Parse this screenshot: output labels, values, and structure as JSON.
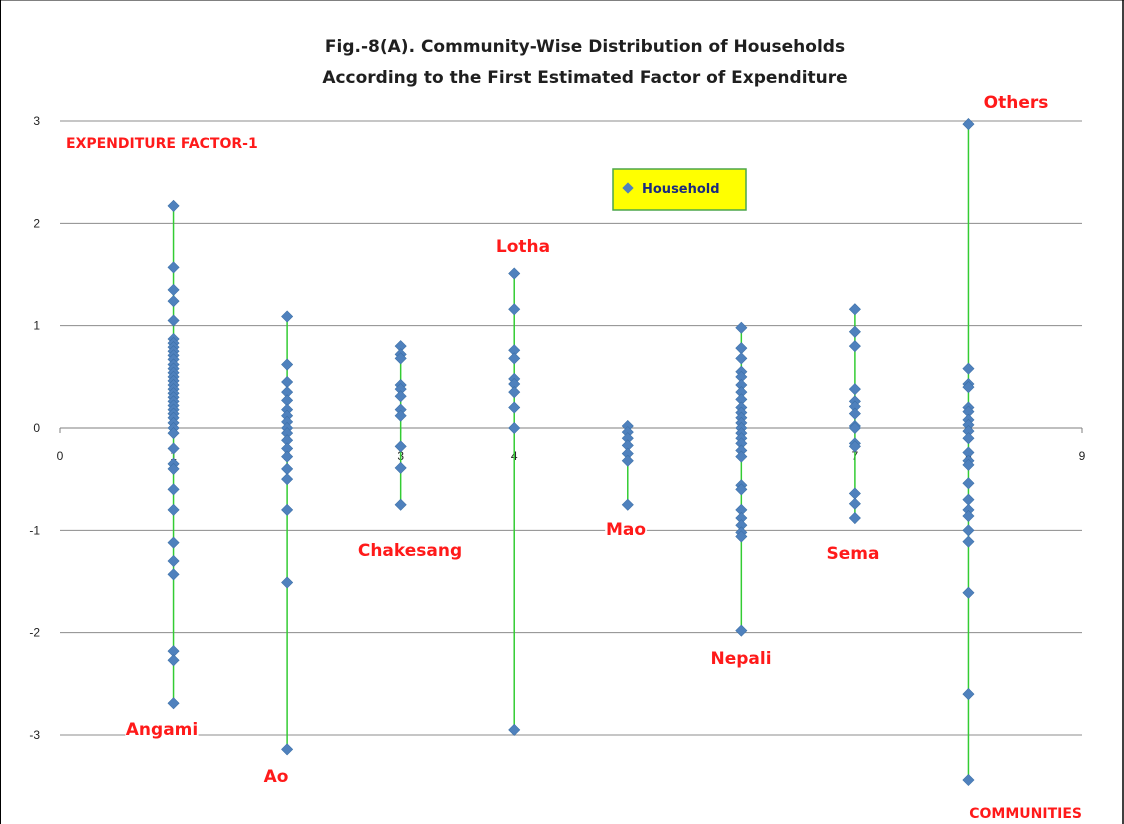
{
  "chart_data": {
    "type": "scatter",
    "title_lines": [
      "Fig.-8(A). Community-Wise Distribution of Households",
      "According to the First Estimated Factor of Expenditure"
    ],
    "ylabel": "EXPENDITURE FACTOR-1",
    "xlabel": "COMMUNITIES",
    "xlim": [
      0,
      9
    ],
    "ylim": [
      -3.5,
      3
    ],
    "y_gridlines": [
      3,
      2,
      1,
      0,
      -1,
      -2,
      -3
    ],
    "x_ticks": [
      "0",
      "1",
      "2",
      "3",
      "4",
      "5",
      "6",
      "7",
      "8",
      "9"
    ],
    "y_ticks": [
      "3",
      "2",
      "1",
      "0",
      "-1",
      "-2",
      "-3"
    ],
    "legend": {
      "label": "Household",
      "placement": "upper-center",
      "background": "#ffff00",
      "border": "#4ca64c"
    },
    "colors": {
      "marker": "#4f81bd",
      "range_line": "#33cc33",
      "community_label": "#ff1a1a",
      "grid": "#8c8c8c"
    },
    "series": [
      {
        "name": "Household",
        "x": 1,
        "label": "Angami",
        "y": [
          2.17,
          1.57,
          1.35,
          1.24,
          1.05,
          0.87,
          0.83,
          0.79,
          0.75,
          0.71,
          0.67,
          0.62,
          0.58,
          0.54,
          0.5,
          0.46,
          0.42,
          0.38,
          0.34,
          0.3,
          0.26,
          0.22,
          0.18,
          0.14,
          0.1,
          0.05,
          0.0,
          -0.05,
          -0.2,
          -0.35,
          -0.4,
          -0.6,
          -0.8,
          -1.12,
          -1.3,
          -1.43,
          -2.18,
          -2.27,
          -2.69
        ]
      },
      {
        "name": "Household",
        "x": 2,
        "label": "Ao",
        "y": [
          1.09,
          0.62,
          0.45,
          0.35,
          0.27,
          0.18,
          0.12,
          0.06,
          0.0,
          -0.05,
          -0.12,
          -0.2,
          -0.28,
          -0.4,
          -0.5,
          -0.8,
          -1.51,
          -3.14
        ]
      },
      {
        "name": "Household",
        "x": 3,
        "label": "Chakesang",
        "y": [
          0.8,
          0.72,
          0.68,
          0.42,
          0.38,
          0.31,
          0.18,
          0.12,
          -0.18,
          -0.39,
          -0.75
        ]
      },
      {
        "name": "Household",
        "x": 4,
        "label": "Lotha",
        "y": [
          1.51,
          1.16,
          0.76,
          0.68,
          0.48,
          0.43,
          0.35,
          0.2,
          0.0,
          -2.95
        ]
      },
      {
        "name": "Household",
        "x": 5,
        "label": "Mao",
        "y": [
          0.02,
          -0.04,
          -0.1,
          -0.17,
          -0.25,
          -0.32,
          -0.75
        ]
      },
      {
        "name": "Household",
        "x": 6,
        "label": "Nepali",
        "y": [
          0.98,
          0.78,
          0.68,
          0.55,
          0.5,
          0.42,
          0.35,
          0.28,
          0.2,
          0.15,
          0.1,
          0.05,
          0.0,
          -0.05,
          -0.1,
          -0.15,
          -0.22,
          -0.28,
          -0.56,
          -0.6,
          -0.8,
          -0.88,
          -0.95,
          -1.02,
          -1.06,
          -1.98
        ]
      },
      {
        "name": "Household",
        "x": 7,
        "label": "Sema",
        "y": [
          1.16,
          0.94,
          0.8,
          0.38,
          0.26,
          0.21,
          0.14,
          0.02,
          0.0,
          -0.15,
          -0.18,
          -0.64,
          -0.74,
          -0.88
        ]
      },
      {
        "name": "Household",
        "x": 8,
        "label": "Others",
        "y": [
          2.97,
          0.58,
          0.43,
          0.4,
          0.2,
          0.16,
          0.08,
          0.03,
          -0.03,
          -0.1,
          -0.24,
          -0.32,
          -0.36,
          -0.54,
          -0.7,
          -0.8,
          -0.86,
          -1.0,
          -1.11,
          -1.61,
          -2.6,
          -3.44
        ]
      }
    ]
  }
}
